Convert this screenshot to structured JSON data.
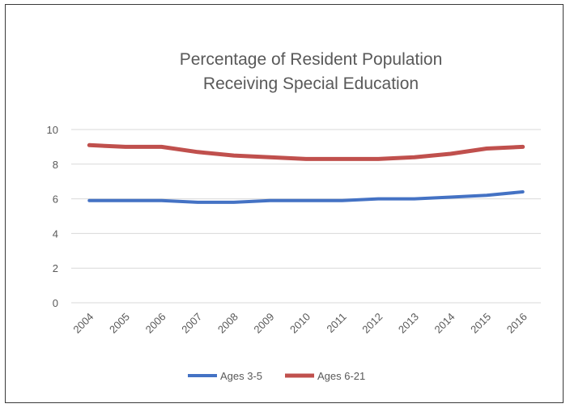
{
  "chart_data": {
    "type": "line",
    "title_lines": [
      "Percentage of Resident Population",
      "Receiving Special Education"
    ],
    "categories": [
      "2004",
      "2005",
      "2006",
      "2007",
      "2008",
      "2009",
      "2010",
      "2011",
      "2012",
      "2013",
      "2014",
      "2015",
      "2016"
    ],
    "series": [
      {
        "name": "Ages 3-5",
        "color": "#4472c4",
        "values": [
          5.9,
          5.9,
          5.9,
          5.8,
          5.8,
          5.9,
          5.9,
          5.9,
          6.0,
          6.0,
          6.1,
          6.2,
          6.4
        ]
      },
      {
        "name": "Ages 6-21",
        "color": "#c0504d",
        "values": [
          9.1,
          9.0,
          9.0,
          8.7,
          8.5,
          8.4,
          8.3,
          8.3,
          8.3,
          8.4,
          8.6,
          8.9,
          9.0
        ]
      }
    ],
    "yticks": [
      0,
      2,
      4,
      6,
      8,
      10
    ],
    "ylim": [
      0,
      10
    ],
    "grid": true,
    "legend_position": "bottom"
  }
}
